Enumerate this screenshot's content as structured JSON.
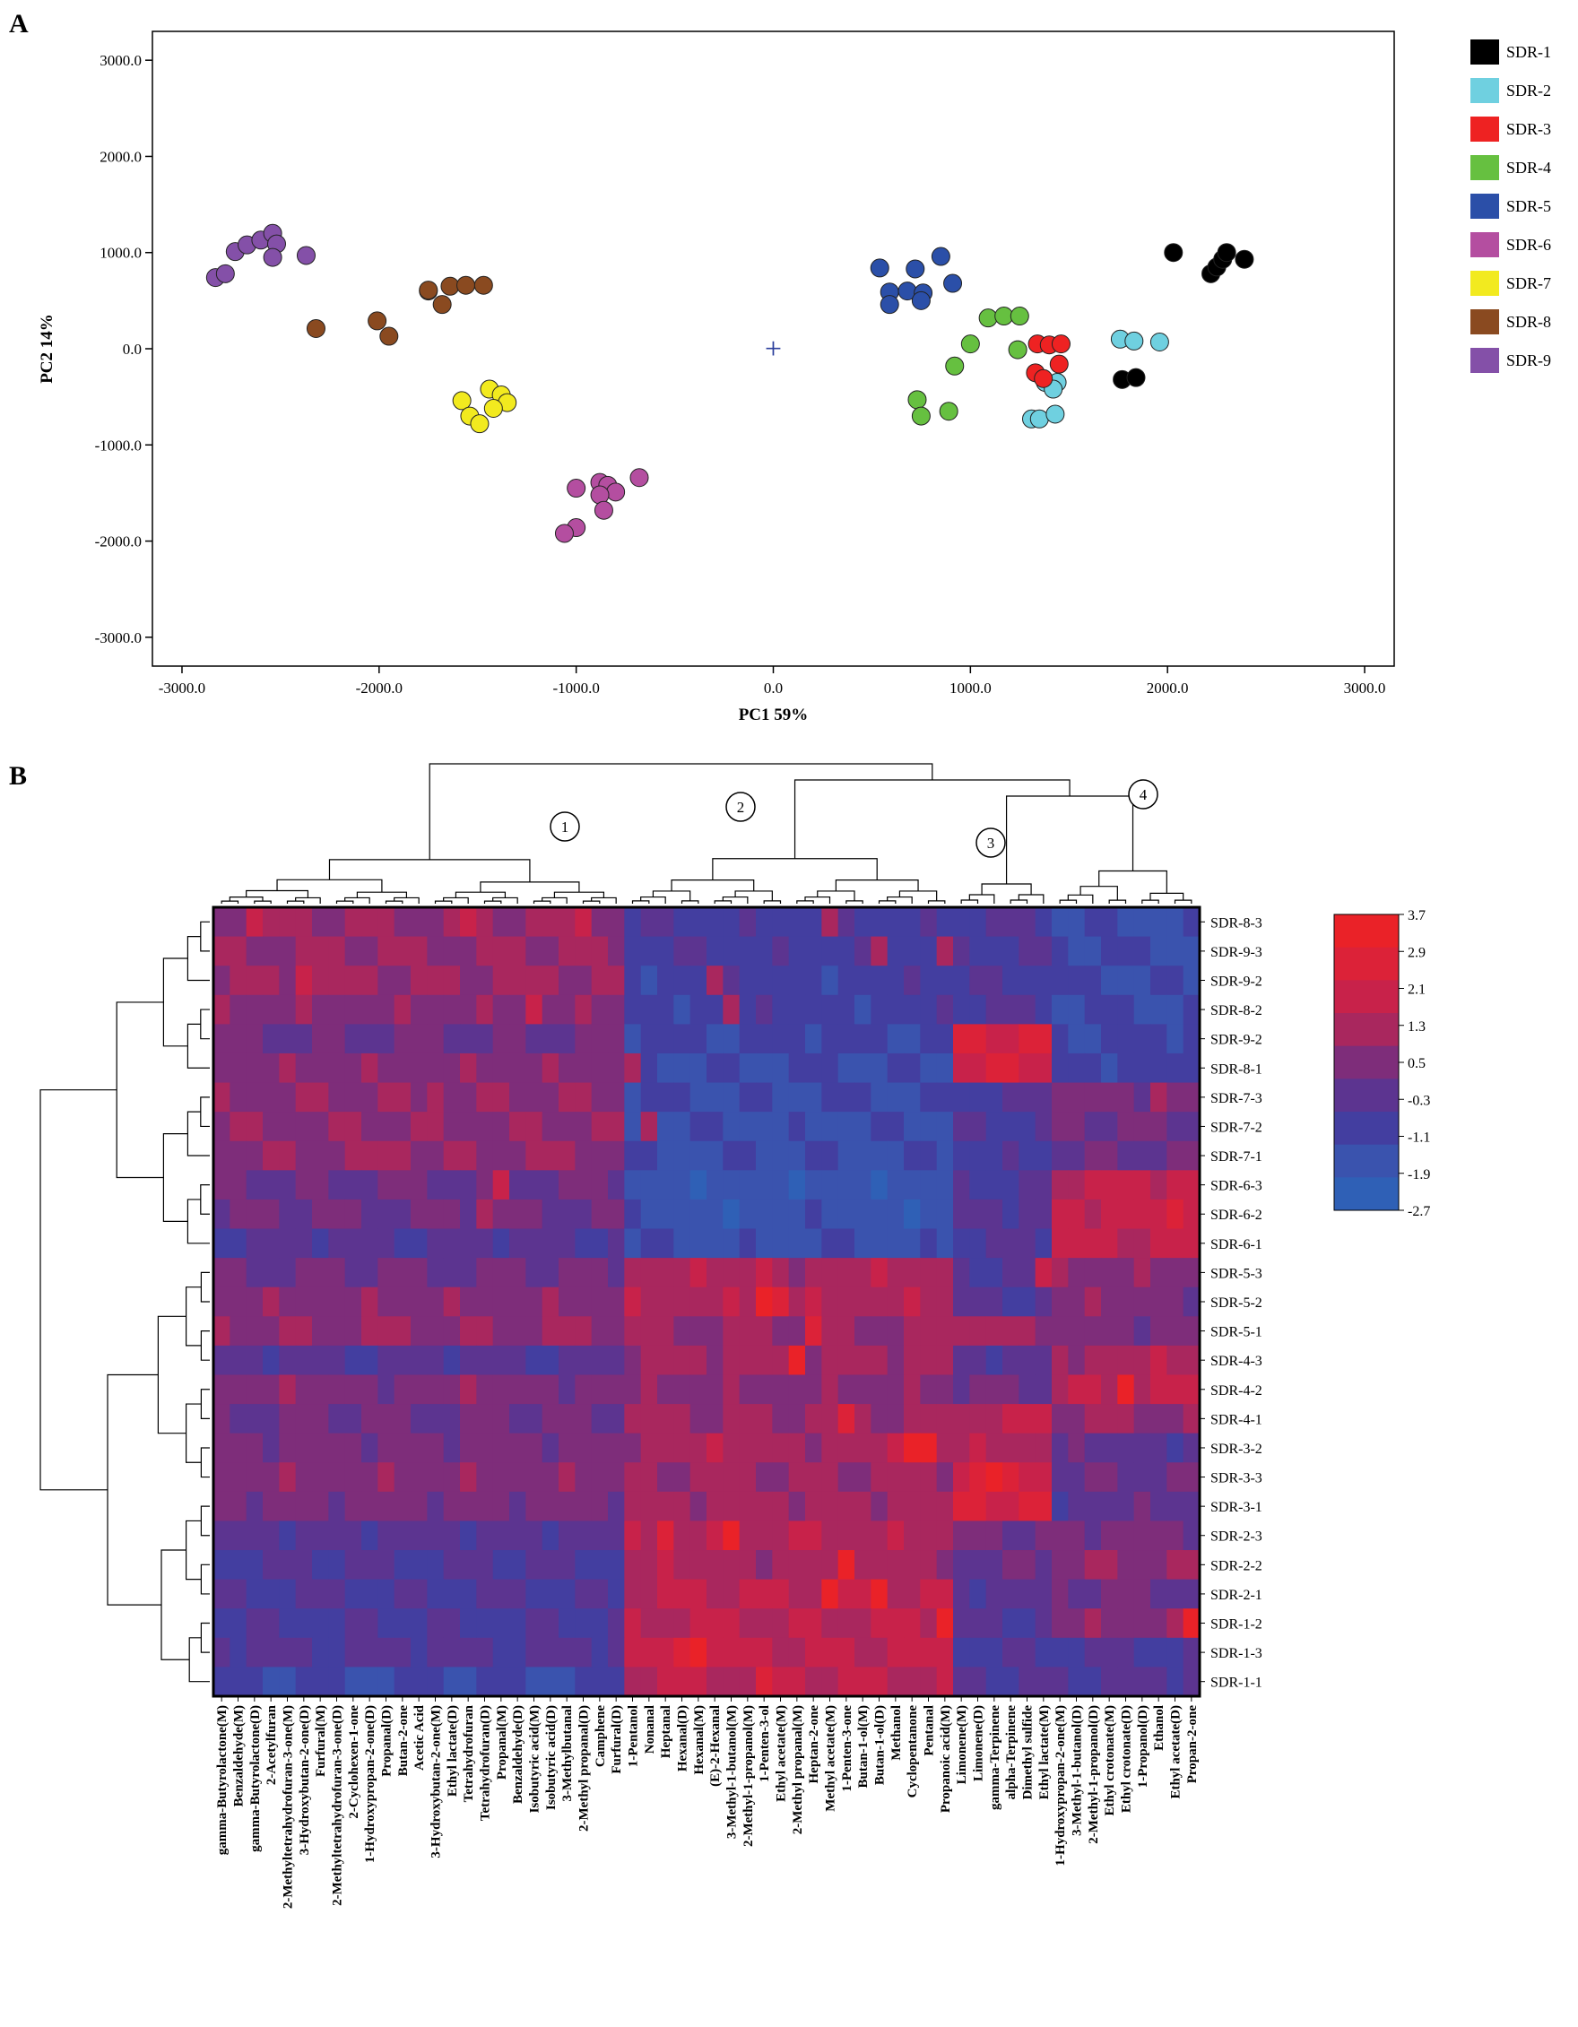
{
  "panel_labels": {
    "a": "A",
    "b": "B"
  },
  "chart_data": [
    {
      "type": "scatter",
      "title": "",
      "xlabel": "PC1 59%",
      "ylabel": "PC2 14%",
      "xlim": [
        -3150,
        3150
      ],
      "ylim": [
        -3300,
        3300
      ],
      "xticks": [
        -3000,
        -2000,
        -1000,
        0,
        1000,
        2000,
        3000
      ],
      "yticks": [
        -3000,
        -2000,
        -1000,
        0,
        1000,
        2000,
        3000
      ],
      "xtick_labels": [
        "-3000.0",
        "-2000.0",
        "-1000.0",
        "0.0",
        "1000.0",
        "2000.0",
        "3000.0"
      ],
      "ytick_labels": [
        "-3000.0",
        "-2000.0",
        "-1000.0",
        "0.0",
        "1000.0",
        "2000.0",
        "3000.0"
      ],
      "origin_marker": "+",
      "legend_position": "right",
      "series": [
        {
          "name": "SDR-1",
          "color": "#000000",
          "x": [
            2030,
            2220,
            2250,
            2280,
            2300,
            2390,
            1770,
            1840
          ],
          "y": [
            1000,
            780,
            850,
            930,
            1000,
            930,
            -320,
            -300
          ]
        },
        {
          "name": "SDR-2",
          "color": "#6fd0e0",
          "x": [
            1760,
            1830,
            1960,
            1380,
            1440,
            1420,
            1310,
            1350,
            1430
          ],
          "y": [
            100,
            80,
            70,
            -350,
            -350,
            -420,
            -730,
            -730,
            -680
          ]
        },
        {
          "name": "SDR-3",
          "color": "#ee2222",
          "x": [
            1340,
            1400,
            1460,
            1450,
            1330,
            1370
          ],
          "y": [
            50,
            40,
            50,
            -160,
            -250,
            -310
          ]
        },
        {
          "name": "SDR-4",
          "color": "#66c040",
          "x": [
            1090,
            1170,
            1250,
            1000,
            1240,
            920,
            730,
            750,
            890
          ],
          "y": [
            320,
            340,
            340,
            50,
            -10,
            -180,
            -530,
            -700,
            -650
          ]
        },
        {
          "name": "SDR-5",
          "color": "#2b4fa8",
          "x": [
            540,
            720,
            850,
            910,
            590,
            590,
            680,
            760,
            750
          ],
          "y": [
            840,
            830,
            960,
            680,
            590,
            460,
            600,
            580,
            500
          ]
        },
        {
          "name": "SDR-6",
          "color": "#b44ea0",
          "x": [
            -1000,
            -880,
            -840,
            -800,
            -880,
            -680,
            -860,
            -1000,
            -1060
          ],
          "y": [
            -1450,
            -1390,
            -1420,
            -1490,
            -1520,
            -1340,
            -1680,
            -1860,
            -1920
          ]
        },
        {
          "name": "SDR-7",
          "color": "#f2ea1f",
          "x": [
            -1580,
            -1440,
            -1380,
            -1350,
            -1420,
            -1540,
            -1490
          ],
          "y": [
            -540,
            -420,
            -480,
            -560,
            -620,
            -700,
            -780
          ]
        },
        {
          "name": "SDR-8",
          "color": "#8a4a20",
          "x": [
            -2320,
            -2010,
            -1950,
            -1750,
            -1680,
            -1640,
            -1560,
            -1470,
            -1750
          ],
          "y": [
            210,
            290,
            130,
            600,
            460,
            650,
            660,
            660,
            610
          ]
        },
        {
          "name": "SDR-9",
          "color": "#8450a8",
          "x": [
            -2830,
            -2780,
            -2730,
            -2670,
            -2600,
            -2540,
            -2520,
            -2540,
            -2370
          ],
          "y": [
            740,
            780,
            1010,
            1080,
            1130,
            1200,
            1090,
            950,
            970
          ]
        }
      ]
    },
    {
      "type": "heatmap",
      "title": "",
      "rows": [
        "SDR-8-3",
        "SDR-9-3",
        "SDR-9-2",
        "SDR-8-2",
        "SDR-9-2",
        "SDR-8-1",
        "SDR-7-3",
        "SDR-7-2",
        "SDR-7-1",
        "SDR-6-3",
        "SDR-6-2",
        "SDR-6-1",
        "SDR-5-3",
        "SDR-5-2",
        "SDR-5-1",
        "SDR-4-3",
        "SDR-4-2",
        "SDR-4-1",
        "SDR-3-2",
        "SDR-3-3",
        "SDR-3-1",
        "SDR-2-3",
        "SDR-2-2",
        "SDR-2-1",
        "SDR-1-2",
        "SDR-1-3",
        "SDR-1-1"
      ],
      "columns": [
        "gamma-Butyrolactone(M)",
        "Benzaldehyde(M)",
        "gamma-Butyrolactone(D)",
        "2-Acetylfuran",
        "2-Methyltetrahydrofuran-3-one(M)",
        "3-Hydroxybutan-2-one(D)",
        "Furfural(M)",
        "2-Methyltetrahydrofuran-3-one(D)",
        "2-Cyclohexen-1-one",
        "1-Hydroxypropan-2-one(D)",
        "Propanal(D)",
        "Butan-2-one",
        "Acetic Acid",
        "3-Hydroxybutan-2-one(M)",
        "Ethyl lactate(D)",
        "Tetrahydrofuran",
        "Tetrahydrofuran(D)",
        "Propanal(M)",
        "Benzaldehyde(D)",
        "Isobutyric acid(M)",
        "Isobutyric acid(D)",
        "3-Methylbutanal",
        "2-Methyl propanal(D)",
        "Camphene",
        "Furfural(D)",
        "1-Pentanol",
        "Nonanal",
        "Heptanal",
        "Hexanal(D)",
        "Hexanal(M)",
        "(E)-2-Hexanal",
        "3-Methyl-1-butanol(M)",
        "2-Methyl-1-propanol(M)",
        "1-Penten-3-ol",
        "Ethyl acetate(M)",
        "2-Methyl propanal(M)",
        "Heptan-2-one",
        "Methyl acetate(M)",
        "1-Penten-3-one",
        "Butan-1-ol(M)",
        "Butan-1-ol(D)",
        "Methanol",
        "Cyclopentanone",
        "Pentanal",
        "Propanoic acid(M)",
        "Limonene(M)",
        "Limonene(D)",
        "gamma-Terpinene",
        "alpha-Terpinene",
        "Dimethyl sulfide",
        "Ethyl lactate(M)",
        "1-Hydroxypropan-2-one(M)",
        "3-Methyl-1-butanol(D)",
        "2-Methyl-1-propanol(D)",
        "Ethyl crotonate(M)",
        "Ethyl crotonate(D)",
        "1-Propanol(D)",
        "Ethanol",
        "Ethyl acetate(D)",
        "Propan-2-one"
      ],
      "colorbar": {
        "ticks": [
          3.7,
          2.9,
          2.1,
          1.3,
          0.5,
          -0.3,
          -1.1,
          -1.9,
          -2.7
        ],
        "tick_labels": [
          "3.7",
          "2.9",
          "2.1",
          "1.3",
          "0.5",
          "-0.3",
          "-1.1",
          "-1.9",
          "-2.7"
        ],
        "colors": [
          "#ea2228",
          "#dc2238",
          "#c8224a",
          "#a9275e",
          "#7e2d7a",
          "#5c3490",
          "#433ea0",
          "#3a53ae",
          "#2f60b6"
        ]
      },
      "cluster_labels": [
        "1",
        "2",
        "3",
        "4"
      ],
      "column_cluster_sizes": [
        25,
        20,
        6,
        9
      ],
      "row_cluster_sizes": [
        12,
        15
      ],
      "cluster_base_levels": [
        [
          0.9,
          0.9,
          1.0,
          0.6,
          0.1,
          0.6,
          0.7,
          0.7,
          0.8,
          0.1,
          0.2,
          -0.4,
          0.2,
          0.6,
          0.8,
          -0.4,
          0.5,
          0.2,
          0.4,
          0.6,
          0.4,
          -0.3,
          -0.5,
          -0.6,
          -0.7,
          -0.4,
          -1.2
        ],
        [
          -0.8,
          -0.8,
          -0.9,
          -0.9,
          -1.1,
          -1.3,
          -1.3,
          -1.5,
          -1.4,
          -1.7,
          -1.6,
          -1.5,
          1.2,
          1.3,
          0.9,
          1.1,
          0.6,
          1.0,
          1.2,
          1.0,
          1.1,
          1.4,
          1.2,
          1.6,
          1.5,
          1.7,
          1.6
        ],
        [
          -0.6,
          -0.5,
          -0.6,
          -0.5,
          2.4,
          2.1,
          -0.5,
          -0.6,
          -0.8,
          -0.6,
          -0.4,
          -0.5,
          -0.4,
          -0.4,
          1.2,
          -0.4,
          0.2,
          1.6,
          1.3,
          2.4,
          2.2,
          0.2,
          0.0,
          -0.2,
          -0.4,
          -0.6,
          -0.5
        ],
        [
          -1.4,
          -1.2,
          -1.3,
          -1.3,
          -1.1,
          -1.0,
          0.5,
          0.2,
          0.0,
          1.8,
          1.9,
          1.8,
          0.6,
          0.5,
          0.4,
          1.2,
          1.5,
          0.9,
          -0.2,
          0.0,
          -0.2,
          0.4,
          0.8,
          0.2,
          0.6,
          -0.6,
          -0.4
        ]
      ],
      "highlights": [
        [
          0,
          2,
          1.8
        ],
        [
          0,
          15,
          1.6
        ],
        [
          0,
          22,
          2.0
        ],
        [
          0,
          37,
          1.2
        ],
        [
          1,
          40,
          1.2
        ],
        [
          1,
          44,
          1.1
        ],
        [
          2,
          5,
          1.8
        ],
        [
          2,
          30,
          1.1
        ],
        [
          3,
          19,
          1.9
        ],
        [
          3,
          31,
          1.4
        ],
        [
          5,
          25,
          1.5
        ],
        [
          6,
          13,
          1.5
        ],
        [
          6,
          57,
          1.2
        ],
        [
          7,
          26,
          1.3
        ],
        [
          8,
          11,
          1.5
        ],
        [
          9,
          17,
          1.6
        ],
        [
          10,
          16,
          1.5
        ],
        [
          11,
          58,
          1.9
        ],
        [
          12,
          33,
          2.2
        ],
        [
          12,
          50,
          1.6
        ],
        [
          13,
          33,
          3.4
        ],
        [
          13,
          34,
          2.8
        ],
        [
          14,
          36,
          2.6
        ],
        [
          15,
          35,
          3.1
        ],
        [
          16,
          55,
          3.7
        ],
        [
          17,
          38,
          2.4
        ],
        [
          18,
          42,
          3.0
        ],
        [
          18,
          43,
          3.2
        ],
        [
          19,
          47,
          3.0
        ],
        [
          20,
          46,
          2.6
        ],
        [
          21,
          31,
          3.7
        ],
        [
          21,
          27,
          2.4
        ],
        [
          22,
          38,
          3.1
        ],
        [
          23,
          37,
          3.6
        ],
        [
          23,
          40,
          3.4
        ],
        [
          24,
          44,
          3.4
        ],
        [
          24,
          59,
          3.6
        ],
        [
          25,
          29,
          3.4
        ],
        [
          25,
          28,
          2.8
        ],
        [
          26,
          33,
          2.6
        ]
      ]
    }
  ]
}
